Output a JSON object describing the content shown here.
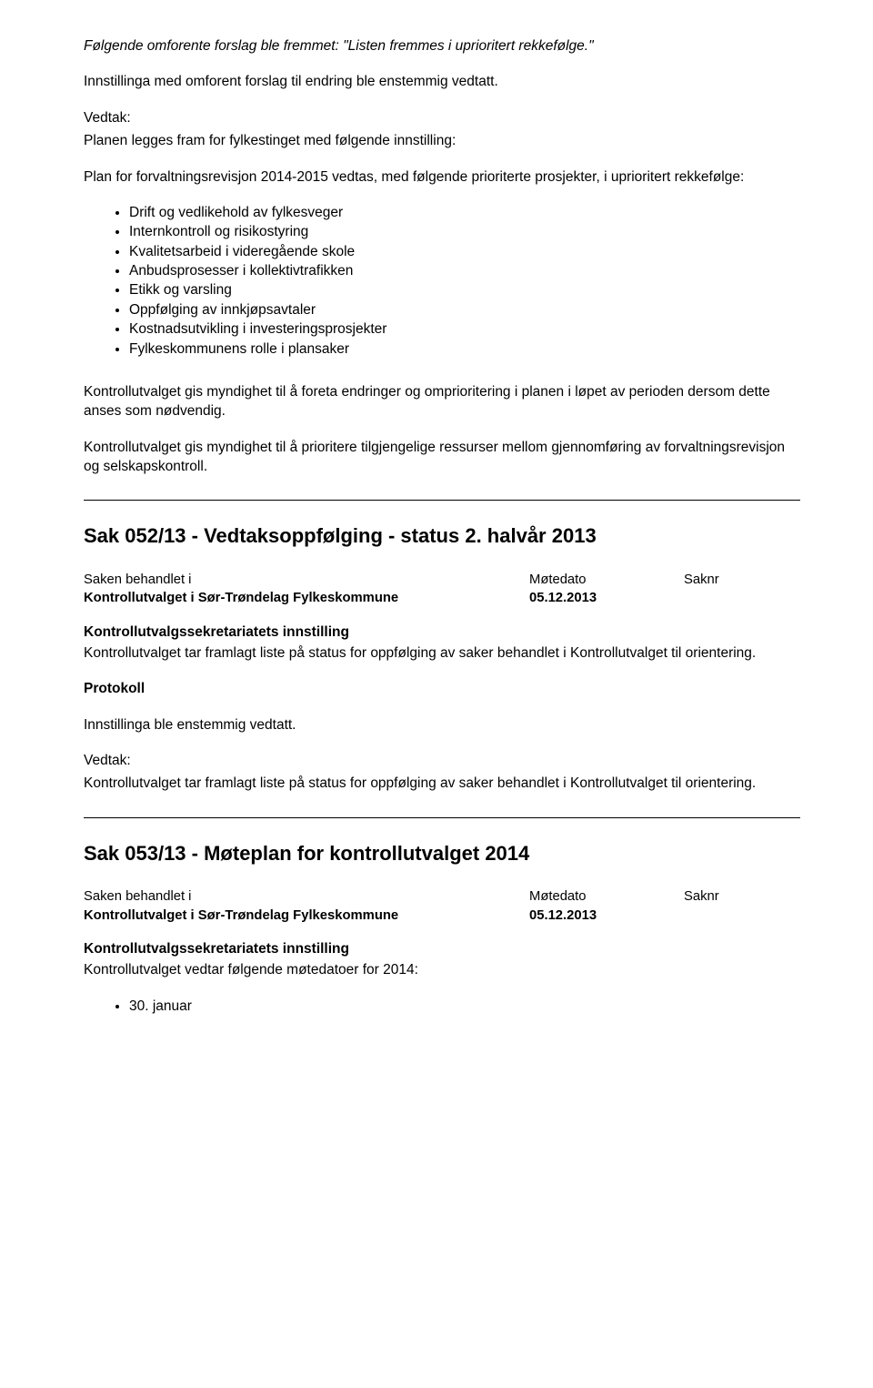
{
  "intro": {
    "proposal_line": "Følgende omforente forslag ble fremmet: \"Listen fremmes i uprioritert rekkefølge.\"",
    "adopted_line": "Innstillinga med omforent forslag til endring ble enstemmig vedtatt.",
    "vedtak_label": "Vedtak:",
    "plan_intro": "Planen legges fram for fylkestinget med følgende innstilling:",
    "plan_body": "Plan for forvaltningsrevisjon 2014-2015 vedtas, med følgende prioriterte prosjekter, i uprioritert rekkefølge:",
    "bullets": [
      "Drift og vedlikehold av fylkesveger",
      "Internkontroll og risikostyring",
      "Kvalitetsarbeid i videregående skole",
      "Anbudsprosesser i kollektivtrafikken",
      "Etikk og varsling",
      "Oppfølging av innkjøpsavtaler",
      "Kostnadsutvikling i investeringsprosjekter",
      "Fylkeskommunens rolle i plansaker"
    ],
    "para_authority": "Kontrollutvalget gis myndighet til å foreta endringer og omprioritering i planen i løpet av perioden dersom dette anses som nødvendig.",
    "para_priority": "Kontrollutvalget gis myndighet til å prioritere tilgjengelige ressurser mellom gjennomføring av forvaltningsrevisjon og selskapskontroll."
  },
  "sak052": {
    "title": "Sak 052/13 - Vedtaksoppfølging - status 2. halvår 2013",
    "meta_header": {
      "c1": "Saken behandlet i",
      "c2": "Møtedato",
      "c3": "Saknr"
    },
    "meta_data": {
      "c1": "Kontrollutvalget i Sør-Trøndelag Fylkeskommune",
      "c2": "05.12.2013",
      "c3": ""
    },
    "innstilling_label": "Kontrollutvalgssekretariatets innstilling",
    "innstilling_body": "Kontrollutvalget tar framlagt liste på status for oppfølging av saker behandlet i Kontrollutvalget til orientering.",
    "protokoll_label": "Protokoll",
    "protokoll_body": "Innstillinga ble enstemmig vedtatt.",
    "vedtak_label": "Vedtak:",
    "vedtak_body": "Kontrollutvalget tar framlagt liste på status for oppfølging av saker behandlet i Kontrollutvalget til orientering."
  },
  "sak053": {
    "title": "Sak 053/13 - Møteplan for kontrollutvalget 2014",
    "meta_header": {
      "c1": "Saken behandlet i",
      "c2": "Møtedato",
      "c3": "Saknr"
    },
    "meta_data": {
      "c1": "Kontrollutvalget i Sør-Trøndelag Fylkeskommune",
      "c2": "05.12.2013",
      "c3": ""
    },
    "innstilling_label": "Kontrollutvalgssekretariatets innstilling",
    "innstilling_body": "Kontrollutvalget vedtar følgende møtedatoer for 2014:",
    "bullets": [
      "30. januar"
    ]
  }
}
